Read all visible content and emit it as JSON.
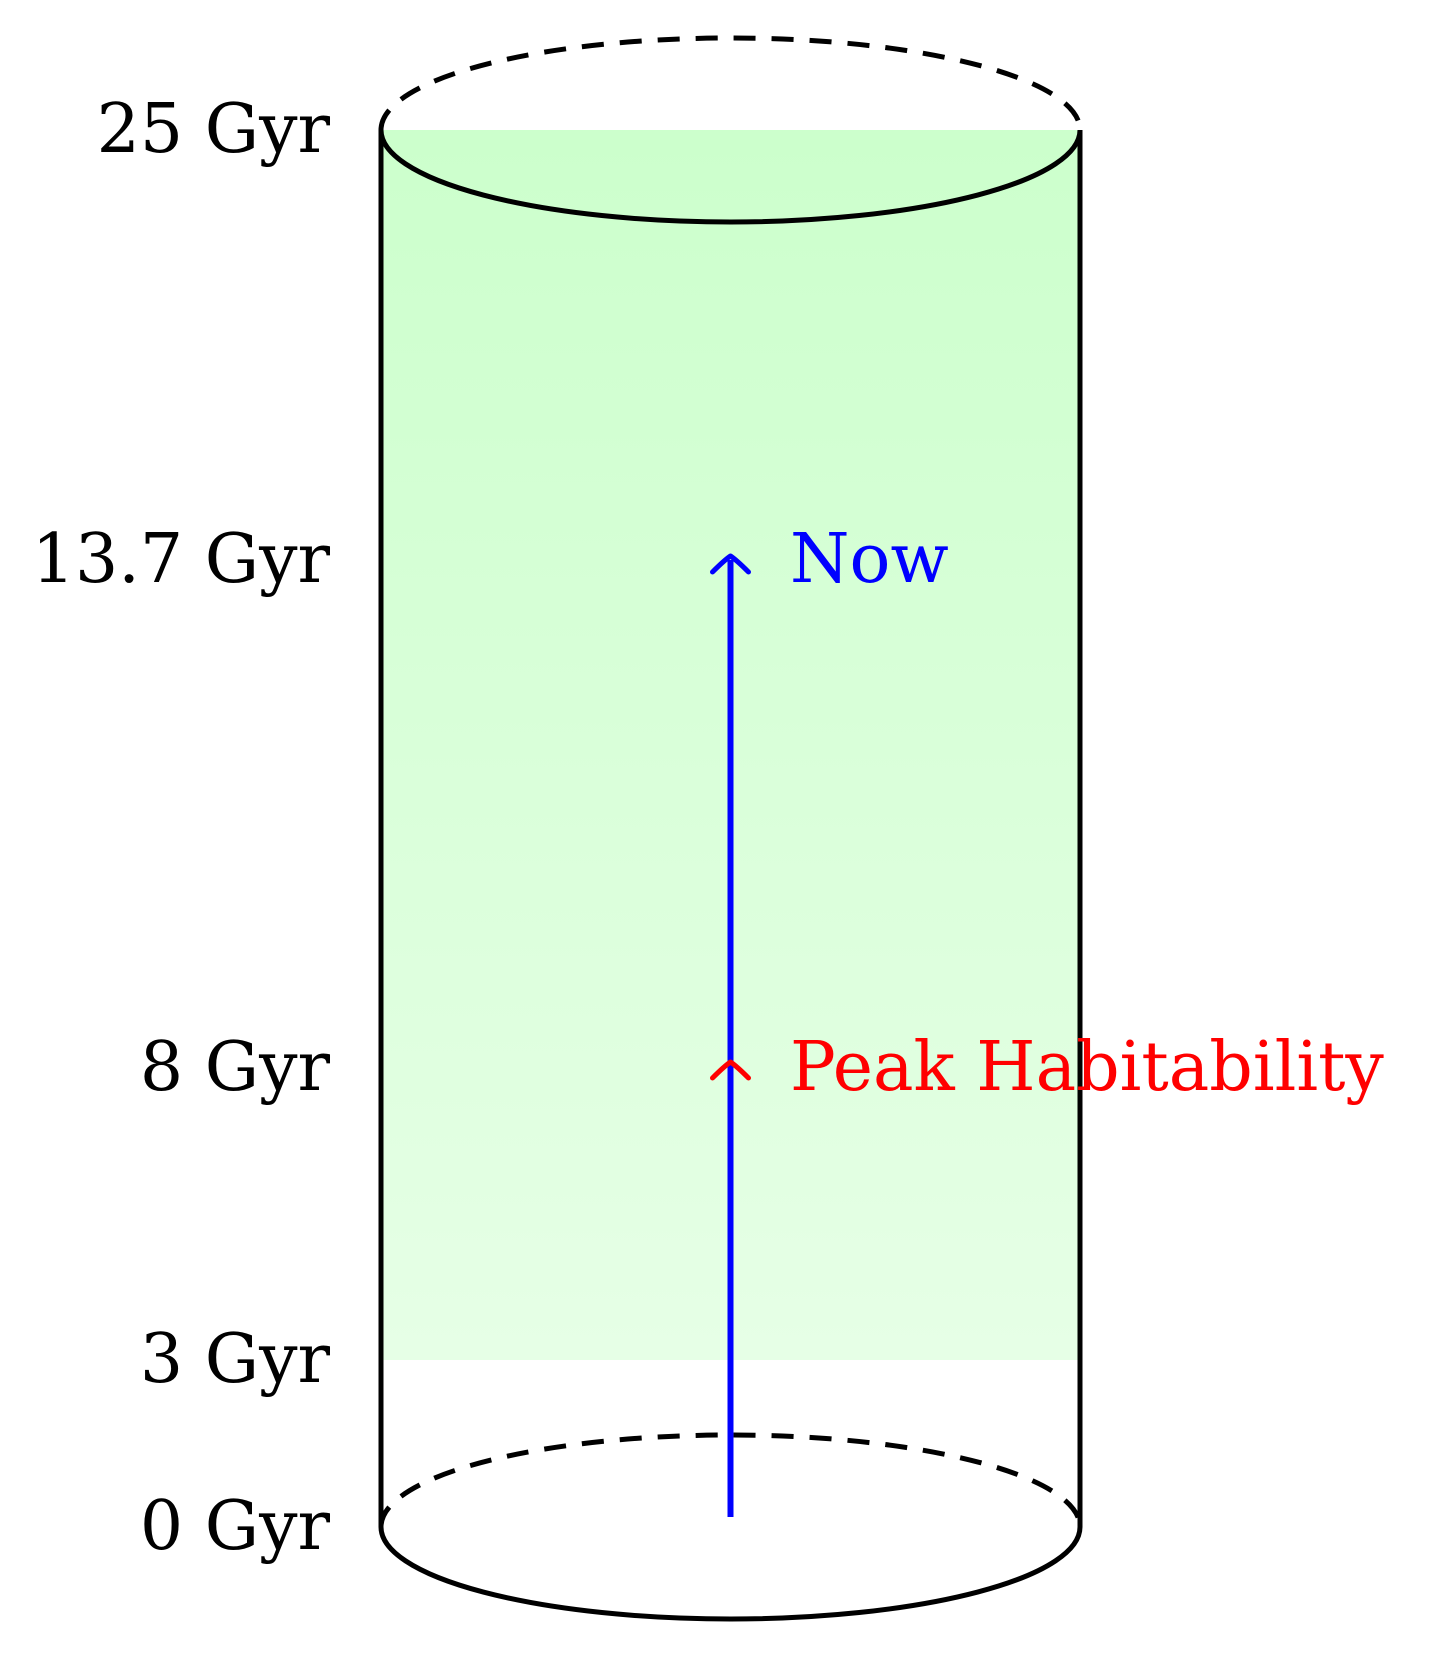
{
  "diagram": {
    "type": "cylinder-timeline",
    "axis_labels": [
      {
        "value": 25,
        "text": "25 Gyr"
      },
      {
        "value": 13.7,
        "text": "13.7 Gyr"
      },
      {
        "value": 8,
        "text": "8 Gyr"
      },
      {
        "value": 3,
        "text": "3 Gyr"
      },
      {
        "value": 0,
        "text": "0 Gyr"
      }
    ],
    "habitable_band": {
      "from": 3,
      "to": 25,
      "color": "#ccffcc"
    },
    "timeline_arrow": {
      "from": 0,
      "to": 13.7,
      "color": "#0000ff"
    },
    "events": [
      {
        "value": 13.7,
        "text": "Now",
        "color": "#0000ff"
      },
      {
        "value": 8,
        "text": "Peak Habitability",
        "color": "#ff0000"
      }
    ]
  }
}
